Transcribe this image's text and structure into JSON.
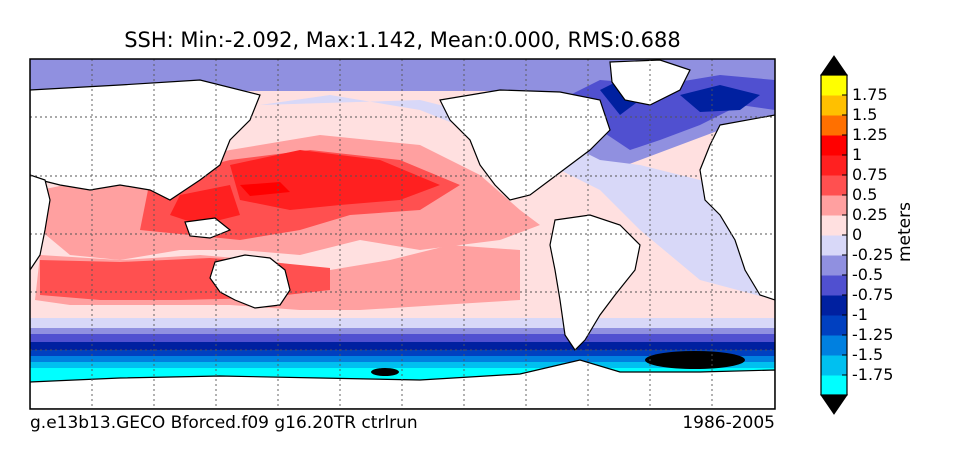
{
  "title": "SSH: Min:-2.092, Max:1.142, Mean:0.000, RMS:0.688",
  "footer": {
    "case_name": "g.e13b13.GECO Bforced.f09 g16.20TR ctrlrun",
    "years": "1986-2005"
  },
  "colorbar": {
    "units": "meters",
    "levels": [
      -2,
      -1.75,
      -1.5,
      -1.25,
      -1,
      -0.75,
      -0.5,
      -0.25,
      0,
      0.25,
      0.5,
      0.75,
      1,
      1.25,
      1.5,
      1.75,
      2
    ],
    "tick_labels": [
      "-1.75",
      "-1.5",
      "-1.25",
      "-1",
      "-0.75",
      "-0.5",
      "-0.25",
      "0",
      "0.25",
      "0.5",
      "0.75",
      "1",
      "1.25",
      "1.5",
      "1.75"
    ],
    "colors": [
      "#00ffff",
      "#00c0f0",
      "#0080e0",
      "#0040c0",
      "#0020a0",
      "#5050d0",
      "#9090e0",
      "#d8d8f8",
      "#ffe0e0",
      "#ffa0a0",
      "#ff5050",
      "#ff2020",
      "#ff0000",
      "#ff7000",
      "#ffc000",
      "#ffff00"
    ],
    "under_color": "#000000",
    "over_color": "#000000"
  },
  "map": {
    "land_color": "#ffffff",
    "projection": "cylindrical, centered on Pacific"
  }
}
